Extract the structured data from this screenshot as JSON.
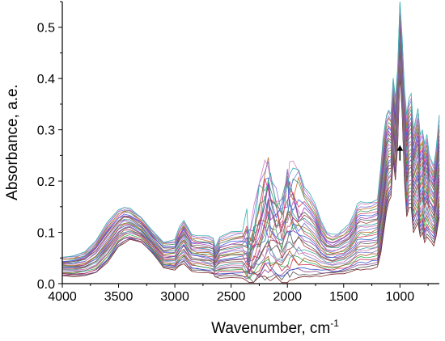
{
  "chart_data": {
    "type": "line",
    "title": "",
    "xlabel": "Wavenumber, cm",
    "xlabel_superscript": "-1",
    "ylabel": "Absorbance, a.e.",
    "xlim": [
      4000,
      650
    ],
    "ylim": [
      0.0,
      0.55
    ],
    "x_reversed": true,
    "x_ticks": [
      4000,
      3500,
      3000,
      2500,
      2000,
      1500,
      1000
    ],
    "x_tick_labels": [
      "4000",
      "3500",
      "3000",
      "2500",
      "2000",
      "1500",
      "1000"
    ],
    "y_ticks": [
      0.0,
      0.1,
      0.2,
      0.3,
      0.4,
      0.5
    ],
    "y_tick_labels": [
      "0.0",
      "0.1",
      "0.2",
      "0.3",
      "0.4",
      "0.5"
    ],
    "grid": false,
    "legend": "none",
    "series_count": 30,
    "arrow_annotation": {
      "direction": "up",
      "x": 1000,
      "y_from": 0.24,
      "y_to": 0.27
    },
    "series_colors": [
      "#7a2020",
      "#555555",
      "#8b4a8b",
      "#3355cc",
      "#cc3355",
      "#33aa55",
      "#aa5522",
      "#7777cc",
      "#cc77aa",
      "#4aa3a3",
      "#a33f3f",
      "#5c5c5c",
      "#9444aa",
      "#2f6ed0",
      "#d0405a",
      "#3e9c5a",
      "#b06a2a",
      "#6b6bd9",
      "#c86ab0",
      "#3a9a9a",
      "#a04848",
      "#606060",
      "#a040c0",
      "#4060e0",
      "#e04070",
      "#40a070",
      "#c07030",
      "#8080e0",
      "#d080c0",
      "#30b0b0"
    ],
    "reference_series": {
      "x": [
        4000,
        3900,
        3800,
        3700,
        3600,
        3500,
        3450,
        3400,
        3300,
        3200,
        3100,
        3000,
        2960,
        2920,
        2880,
        2850,
        2800,
        2700,
        2660,
        2640,
        2600,
        2500,
        2400,
        2360,
        2340,
        2300,
        2250,
        2200,
        2170,
        2150,
        2100,
        2050,
        2000,
        1980,
        1950,
        1900,
        1850,
        1800,
        1750,
        1700,
        1650,
        1600,
        1550,
        1500,
        1450,
        1400,
        1380,
        1350,
        1300,
        1250,
        1200,
        1170,
        1150,
        1120,
        1100,
        1080,
        1060,
        1040,
        1020,
        1000,
        980,
        960,
        940,
        920,
        900,
        880,
        860,
        840,
        820,
        800,
        780,
        760,
        740,
        720,
        700,
        680,
        650
      ],
      "max_y": [
        0.052,
        0.055,
        0.062,
        0.085,
        0.12,
        0.145,
        0.15,
        0.148,
        0.13,
        0.102,
        0.082,
        0.086,
        0.11,
        0.125,
        0.108,
        0.095,
        0.094,
        0.092,
        0.088,
        0.07,
        0.09,
        0.1,
        0.104,
        0.108,
        0.095,
        0.12,
        0.17,
        0.215,
        0.235,
        0.2,
        0.18,
        0.16,
        0.225,
        0.23,
        0.212,
        0.2,
        0.19,
        0.175,
        0.155,
        0.12,
        0.1,
        0.095,
        0.098,
        0.105,
        0.115,
        0.14,
        0.155,
        0.16,
        0.158,
        0.16,
        0.165,
        0.23,
        0.28,
        0.33,
        0.34,
        0.33,
        0.4,
        0.36,
        0.42,
        0.55,
        0.48,
        0.38,
        0.33,
        0.36,
        0.37,
        0.3,
        0.32,
        0.34,
        0.29,
        0.3,
        0.27,
        0.29,
        0.25,
        0.24,
        0.23,
        0.26,
        0.33
      ],
      "min_y": [
        0.015,
        0.014,
        0.015,
        0.02,
        0.04,
        0.072,
        0.08,
        0.085,
        0.08,
        0.06,
        0.03,
        0.027,
        0.034,
        0.04,
        0.03,
        0.025,
        0.023,
        0.02,
        0.018,
        0.012,
        0.012,
        0.012,
        0.01,
        0.008,
        0.005,
        0.005,
        0.006,
        0.008,
        0.01,
        0.007,
        0.008,
        0.006,
        0.008,
        0.01,
        0.01,
        0.012,
        0.012,
        0.013,
        0.014,
        0.015,
        0.017,
        0.017,
        0.018,
        0.02,
        0.022,
        0.025,
        0.027,
        0.028,
        0.028,
        0.03,
        0.032,
        0.06,
        0.09,
        0.14,
        0.16,
        0.17,
        0.24,
        0.2,
        0.27,
        0.41,
        0.33,
        0.2,
        0.13,
        0.15,
        0.15,
        0.1,
        0.11,
        0.12,
        0.09,
        0.1,
        0.08,
        0.09,
        0.085,
        0.08,
        0.075,
        0.09,
        0.13
      ]
    }
  }
}
